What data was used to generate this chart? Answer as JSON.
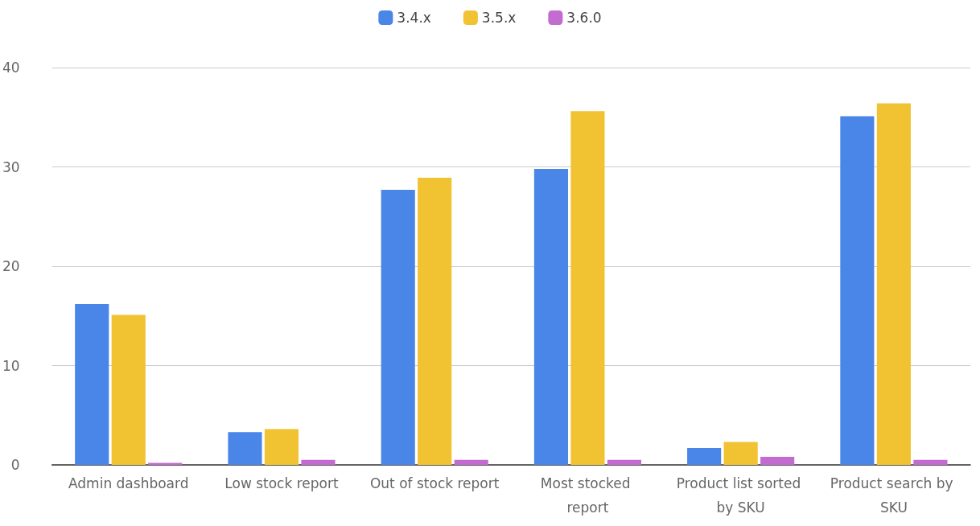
{
  "chart_data": {
    "type": "bar",
    "categories": [
      "Admin dashboard",
      "Low stock report",
      "Out of stock report",
      "Most stocked report",
      "Product list sorted by SKU",
      "Product search by SKU"
    ],
    "series": [
      {
        "name": "3.4.x",
        "color": "#4a86e8",
        "values": [
          16.2,
          3.3,
          27.7,
          29.8,
          1.7,
          35.1
        ]
      },
      {
        "name": "3.5.x",
        "color": "#f1c232",
        "values": [
          15.1,
          3.6,
          28.9,
          35.6,
          2.3,
          36.4
        ]
      },
      {
        "name": "3.6.0",
        "color": "#c36bd0",
        "values": [
          0.2,
          0.5,
          0.5,
          0.5,
          0.8,
          0.5
        ]
      }
    ],
    "ylim": [
      0,
      40
    ],
    "yticks": [
      0,
      10,
      20,
      30,
      40
    ],
    "grid": "y",
    "legend": "top"
  }
}
